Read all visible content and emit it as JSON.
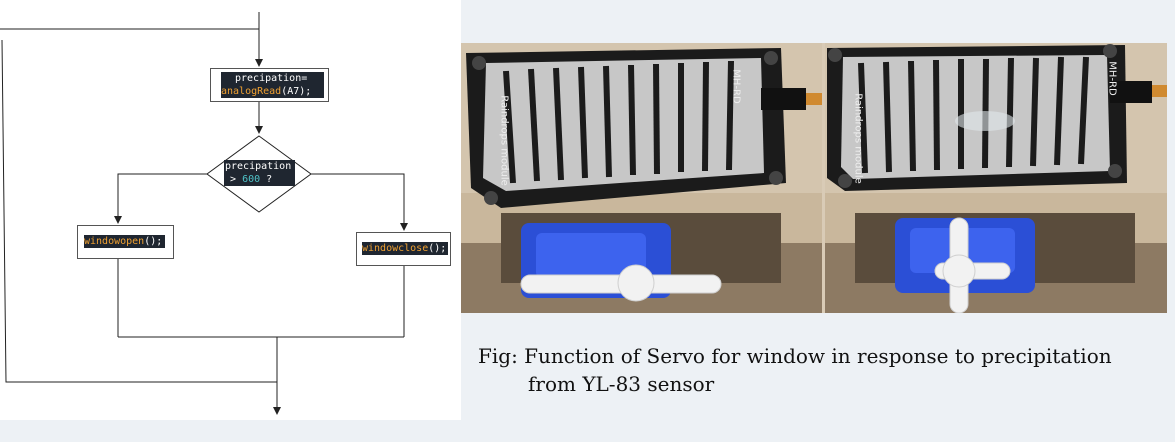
{
  "flowchart": {
    "assign_var": "precipation=",
    "assign_func": "analogRead",
    "assign_args": "(A7);",
    "decision_var": "precipation",
    "decision_op": ">",
    "decision_value": "600",
    "decision_q": "?",
    "open_call": "windowopen",
    "open_parens": "();",
    "close_call": "windowclose",
    "close_parens": "();"
  },
  "photos": {
    "left_module_label": "Raindrops module",
    "left_brand": "MH-RD",
    "right_module_label": "Raindrops module",
    "right_brand": "MH-RD"
  },
  "caption": {
    "line1": "Fig:  Function of Servo for window in response to precipitation",
    "line2": "from YL-83 sensor"
  },
  "colors": {
    "code_bg": "#1f2630",
    "code_keyword": "#f0a030",
    "code_number": "#4fc3c8",
    "board": "#1b1b1b",
    "servo": "#2b4fd6"
  }
}
